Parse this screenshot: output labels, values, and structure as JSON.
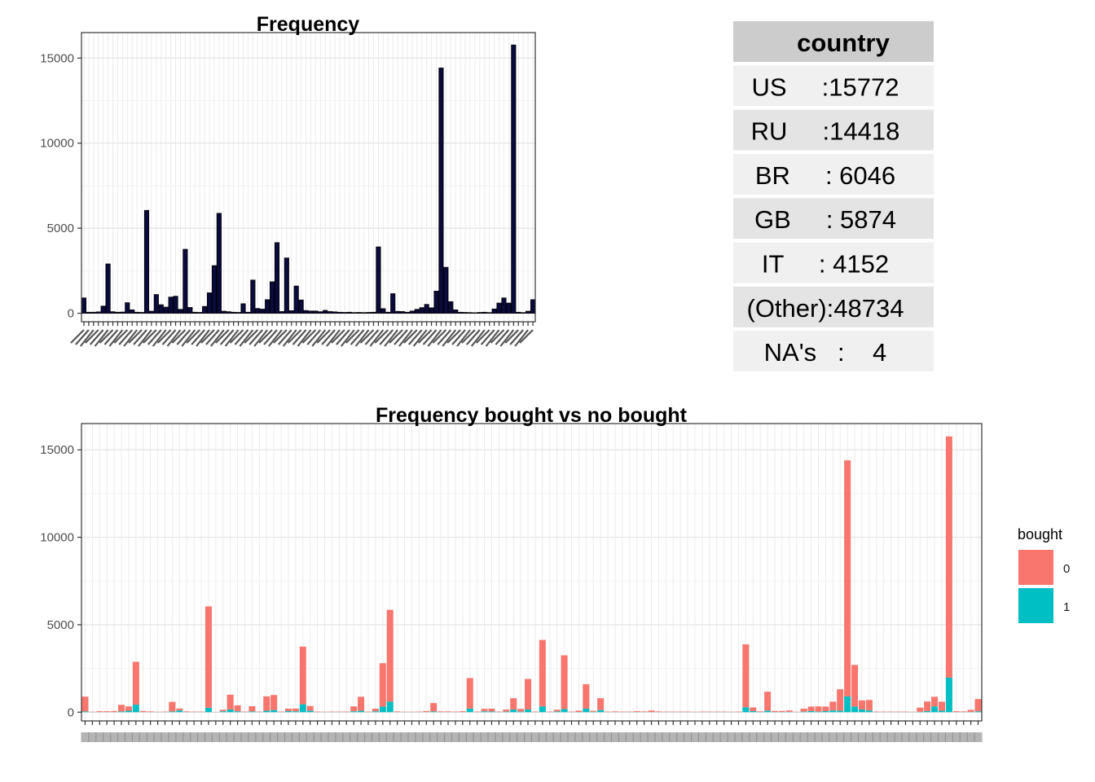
{
  "summary_table": {
    "header": "country",
    "rows": [
      "US     :15772",
      "RU     :14418",
      "BR     : 6046",
      "GB     : 5874",
      "IT     : 4152",
      "(Other):48734",
      "NA's   :    4"
    ]
  },
  "legend": {
    "title": "bought",
    "items": [
      {
        "label": "0",
        "color": "#F8766D"
      },
      {
        "label": "1",
        "color": "#00BFC4"
      }
    ]
  },
  "chart_data": [
    {
      "type": "bar",
      "title": "Frequency",
      "xlabel": "",
      "ylabel": "",
      "ylim": [
        -500,
        16500
      ],
      "yticks": [
        0,
        5000,
        10000,
        15000
      ],
      "grid": true,
      "bar_color": "#0a0a3c",
      "bar_outline": "#000000",
      "note_tick_labels": "x tick labels are overlapped and illegible",
      "values": [
        900,
        60,
        60,
        80,
        420,
        2900,
        90,
        60,
        70,
        620,
        200,
        60,
        50,
        6046,
        120,
        1100,
        500,
        360,
        950,
        1000,
        230,
        3760,
        340,
        60,
        50,
        400,
        1200,
        2800,
        5874,
        120,
        90,
        60,
        50,
        560,
        60,
        1950,
        280,
        240,
        800,
        1850,
        4152,
        100,
        3250,
        150,
        1600,
        780,
        160,
        130,
        130,
        90,
        170,
        100,
        80,
        60,
        50,
        60,
        40,
        50,
        40,
        50,
        60,
        3900,
        270,
        60,
        1150,
        110,
        100,
        60,
        130,
        230,
        330,
        520,
        320,
        1300,
        14418,
        2700,
        680,
        200,
        60,
        50,
        40,
        30,
        50,
        60,
        40,
        250,
        600,
        900,
        600,
        15772,
        60,
        40,
        120,
        800
      ]
    },
    {
      "type": "bar",
      "title": "Frequency bought vs no bought",
      "xlabel": "",
      "ylabel": "",
      "ylim": [
        -500,
        16500
      ],
      "yticks": [
        0,
        5000,
        10000,
        15000
      ],
      "grid": true,
      "stacked": true,
      "note_tick_labels": "x tick labels are overlapped and illegible",
      "series": [
        {
          "name": "0",
          "color": "#F8766D",
          "values": [
            850,
            20,
            50,
            50,
            60,
            380,
            250,
            2450,
            60,
            40,
            20,
            30,
            550,
            110,
            40,
            30,
            30,
            5800,
            10,
            90,
            850,
            340,
            30,
            300,
            30,
            820,
            860,
            30,
            140,
            160,
            3300,
            270,
            30,
            20,
            30,
            30,
            30,
            280,
            800,
            30,
            150,
            2480,
            5250,
            40,
            20,
            20,
            30,
            60,
            480,
            40,
            40,
            30,
            50,
            1750,
            30,
            140,
            160,
            30,
            120,
            650,
            160,
            1750,
            30,
            3800,
            30,
            100,
            3070,
            30,
            80,
            1400,
            60,
            680,
            30,
            40,
            30,
            30,
            50,
            40,
            90,
            40,
            30,
            30,
            30,
            30,
            20,
            30,
            30,
            30,
            30,
            20,
            30,
            3600,
            210,
            40,
            1080,
            60,
            60,
            80,
            20,
            170,
            260,
            300,
            260,
            500,
            1230,
            13500,
            2380,
            520,
            600,
            30,
            30,
            30,
            30,
            30,
            20,
            240,
            550,
            550,
            520,
            13800,
            50,
            40,
            120,
            700
          ]
        },
        {
          "name": "1",
          "color": "#00BFC4",
          "values": [
            40,
            5,
            5,
            5,
            5,
            40,
            80,
            430,
            5,
            5,
            5,
            5,
            40,
            100,
            5,
            5,
            5,
            250,
            5,
            50,
            150,
            50,
            5,
            40,
            5,
            80,
            120,
            5,
            60,
            50,
            450,
            80,
            5,
            5,
            5,
            5,
            5,
            50,
            80,
            5,
            50,
            320,
            600,
            5,
            5,
            5,
            5,
            5,
            40,
            5,
            5,
            5,
            5,
            200,
            5,
            50,
            40,
            5,
            30,
            150,
            30,
            150,
            5,
            330,
            5,
            40,
            180,
            5,
            10,
            200,
            20,
            120,
            5,
            5,
            5,
            5,
            10,
            5,
            5,
            5,
            5,
            5,
            5,
            5,
            5,
            5,
            5,
            5,
            5,
            5,
            5,
            280,
            60,
            10,
            90,
            10,
            10,
            20,
            5,
            30,
            60,
            30,
            60,
            100,
            80,
            900,
            320,
            150,
            100,
            5,
            5,
            5,
            5,
            5,
            5,
            20,
            60,
            330,
            80,
            1970,
            5,
            5,
            10,
            50
          ]
        }
      ]
    }
  ]
}
